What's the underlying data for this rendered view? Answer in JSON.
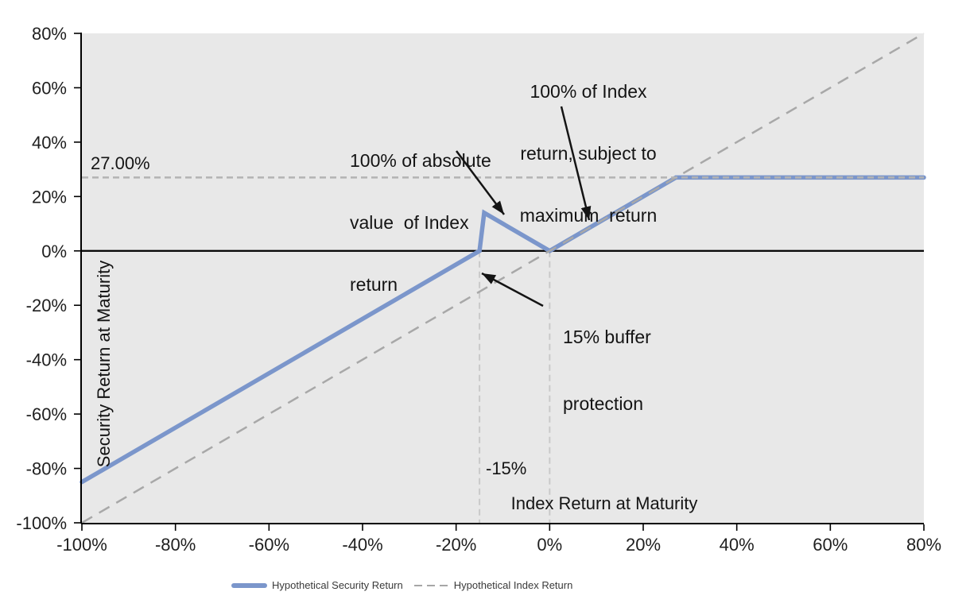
{
  "chart_data": {
    "type": "line",
    "title": "",
    "xlabel": "Index Return at Maturity",
    "ylabel": "Security Return at Maturity",
    "xlim": [
      -100,
      80
    ],
    "ylim": [
      -100,
      80
    ],
    "grid": false,
    "plot_background": "#e8e8e8",
    "legend_position": "bottom",
    "x_ticks": [
      {
        "value": -100,
        "label": "-100%"
      },
      {
        "value": -80,
        "label": "-80%"
      },
      {
        "value": -60,
        "label": "-60%"
      },
      {
        "value": -40,
        "label": "-40%"
      },
      {
        "value": -20,
        "label": "-20%"
      },
      {
        "value": 0,
        "label": "0%"
      },
      {
        "value": 20,
        "label": "20%"
      },
      {
        "value": 40,
        "label": "40%"
      },
      {
        "value": 60,
        "label": "60%"
      },
      {
        "value": 80,
        "label": "80%"
      }
    ],
    "y_ticks": [
      {
        "value": 80,
        "label": "80%"
      },
      {
        "value": 60,
        "label": "60%"
      },
      {
        "value": 40,
        "label": "40%"
      },
      {
        "value": 20,
        "label": "20%"
      },
      {
        "value": 0,
        "label": "0%"
      },
      {
        "value": -20,
        "label": "-20%"
      },
      {
        "value": -40,
        "label": "-40%"
      },
      {
        "value": -60,
        "label": "-60%"
      },
      {
        "value": -80,
        "label": "-80%"
      },
      {
        "value": -100,
        "label": "-100%"
      }
    ],
    "series": [
      {
        "name": "Hypothetical Security Return",
        "color": "#7b96cb",
        "width": 5.5,
        "dash": null,
        "points": [
          [
            -100,
            -85
          ],
          [
            -15,
            0
          ],
          [
            -14,
            14
          ],
          [
            0,
            0
          ],
          [
            27,
            27
          ],
          [
            80,
            27
          ]
        ]
      },
      {
        "name": "Hypothetical Index Return",
        "color": "#a8a8a8",
        "width": 2.5,
        "dash": [
          15,
          10
        ],
        "points": [
          [
            -100,
            -100
          ],
          [
            80,
            80
          ]
        ]
      }
    ],
    "reference_lines": [
      {
        "axis": "y",
        "value": 27,
        "label": "27.00%",
        "color": "#b3b3b3",
        "dash": [
          8,
          5
        ]
      },
      {
        "axis": "x",
        "value": -15,
        "label": "-15%",
        "color": "#c9c9c9",
        "dash": [
          8,
          5
        ],
        "from_y": 0,
        "to_y": -100
      },
      {
        "axis": "x",
        "value": 0,
        "label": "",
        "color": "#c9c9c9",
        "dash": [
          8,
          5
        ],
        "from_y": 0,
        "to_y": -100
      }
    ],
    "annotations": [
      {
        "text": "100% of Index return, subject to maximum  return",
        "points_to": "capped segment between 0% and 27%"
      },
      {
        "text": "100% of absolute value of Index return",
        "points_to": "absolute-value spike between -15% and 0%"
      },
      {
        "text": "15% buffer protection",
        "points_to": "buffer point at index -15%, security 0%"
      }
    ]
  },
  "annotations": {
    "max": {
      "line1": "100% of Index",
      "line2": "return, subject to",
      "line3": "maximum  return"
    },
    "abs": {
      "line1": "100% of absolute",
      "line2": "value  of Index",
      "line3": "return"
    },
    "buffer": {
      "line1": "15% buffer",
      "line2": "protection"
    }
  },
  "colors": {
    "security_line": "#7b96cb",
    "index_line": "#a8a8a8",
    "cap_line": "#b3b3b3",
    "marker_line": "#c9c9c9",
    "plot_background": "#e8e8e8",
    "axis": "#000000"
  }
}
